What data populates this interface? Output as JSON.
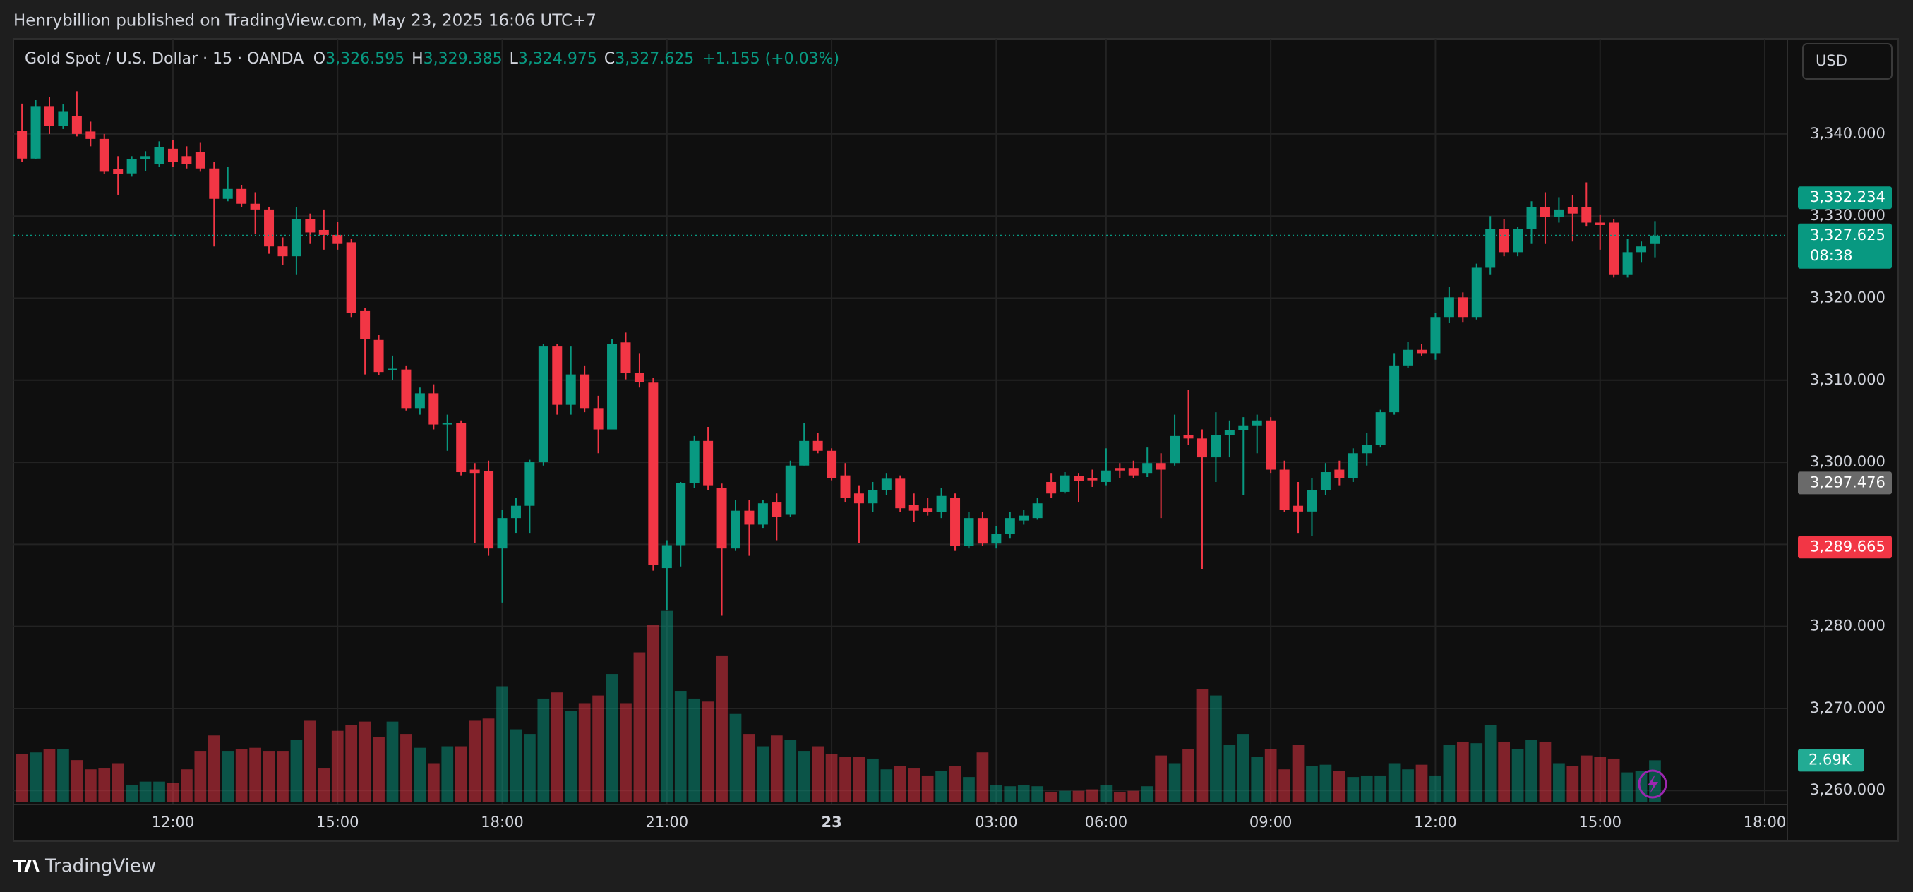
{
  "chart_data": {
    "type": "candlestick",
    "header": "Henrybillion published on TradingView.com, May 23, 2025 16:06 UTC+7",
    "title": "Gold Spot / U.S. Dollar · 15 · OANDA",
    "ohlc_legend": [
      {
        "key": "O",
        "label": "3,326.595"
      },
      {
        "key": "H",
        "label": "3,329.385"
      },
      {
        "key": "L",
        "label": "3,324.975"
      },
      {
        "key": "C",
        "label": "3,327.625"
      }
    ],
    "change": "+1.155 (+0.03%)",
    "currency": "USD",
    "brand": "TradingView",
    "up_color": "#089981",
    "down_color": "#f23645",
    "grid": true,
    "ylim": [
      3258.3,
      3351.6
    ],
    "yticks": [
      {
        "value": 3260,
        "label": "3,260.000"
      },
      {
        "value": 3270,
        "label": "3,270.000"
      },
      {
        "value": 3280,
        "label": "3,280.000"
      },
      {
        "value": 3290,
        "label": "3,290.000"
      },
      {
        "value": 3300,
        "label": "3,300.000"
      },
      {
        "value": 3310,
        "label": "3,310.000"
      },
      {
        "value": 3320,
        "label": "3,320.000"
      },
      {
        "value": 3330,
        "label": "3,330.000"
      },
      {
        "value": 3340,
        "label": "3,340.000"
      }
    ],
    "categories": [
      null,
      null,
      null,
      null,
      null,
      null,
      null,
      null,
      null,
      null,
      null,
      "12:00",
      null,
      null,
      null,
      null,
      null,
      null,
      null,
      null,
      null,
      null,
      null,
      "15:00",
      null,
      null,
      null,
      null,
      null,
      null,
      null,
      null,
      null,
      null,
      null,
      "18:00",
      null,
      null,
      null,
      null,
      null,
      null,
      null,
      null,
      null,
      null,
      null,
      "21:00",
      null,
      null,
      null,
      null,
      null,
      null,
      null,
      null,
      null,
      null,
      null,
      "23",
      null,
      null,
      null,
      null,
      null,
      null,
      null,
      null,
      null,
      null,
      null,
      "03:00",
      null,
      null,
      null,
      null,
      null,
      null,
      null,
      "06:00",
      null,
      null,
      null,
      null,
      null,
      null,
      null,
      null,
      null,
      null,
      null,
      "09:00",
      null,
      null,
      null,
      null,
      null,
      null,
      null,
      null,
      null,
      null,
      null,
      "12:00",
      null,
      null,
      null,
      null,
      null,
      null,
      null,
      null,
      null,
      null,
      null,
      "15:00",
      null,
      null,
      null,
      null,
      null,
      null,
      null,
      null,
      null,
      null,
      null,
      "18:00"
    ],
    "open": [
      3340.4,
      3337.0,
      3343.4,
      3341.0,
      3342.2,
      3340.3,
      3339.4,
      3335.7,
      3335.2,
      3336.9,
      3336.3,
      3338.2,
      3337.3,
      3337.8,
      3335.8,
      3332.1,
      3333.3,
      3331.5,
      3330.8,
      3326.3,
      3325.1,
      3329.6,
      3328.3,
      3327.7,
      3326.8,
      3318.5,
      3314.9,
      3311.2,
      3311.3,
      3306.6,
      3308.4,
      3304.6,
      3304.8,
      3299.1,
      3298.9,
      3289.5,
      3293.2,
      3294.7,
      3300.0,
      3314.1,
      3307.0,
      3310.7,
      3306.6,
      3304.0,
      3314.6,
      3310.9,
      3309.7,
      3287.1,
      3289.9,
      3297.5,
      3302.6,
      3296.9,
      3289.5,
      3294.1,
      3292.4,
      3295.1,
      3293.6,
      3299.6,
      3302.6,
      3301.4,
      3298.4,
      3296.2,
      3295.0,
      3296.6,
      3298.0,
      3294.8,
      3294.4,
      3293.9,
      3295.7,
      3289.8,
      3293.2,
      3290.1,
      3291.3,
      3292.9,
      3293.2,
      3297.6,
      3296.4,
      3298.3,
      3298.1,
      3297.6,
      3299.3,
      3299.3,
      3298.7,
      3299.9,
      3299.9,
      3303.3,
      3302.9,
      3300.6,
      3303.3,
      3303.9,
      3304.5,
      3305.1,
      3299.1,
      3294.7,
      3294.0,
      3296.6,
      3299.1,
      3298.1,
      3301.1,
      3302.1,
      3306.1,
      3311.8,
      3313.7,
      3313.3,
      3317.7,
      3320.1,
      3317.7,
      3323.7,
      3328.4,
      3325.6,
      3328.4,
      3331.1,
      3329.9,
      3331.1,
      3331.1,
      3329.2,
      3329.2,
      3322.9,
      3325.6,
      3326.595,
      null,
      null,
      null,
      null,
      null,
      null,
      null,
      null
    ],
    "high": [
      3343.7,
      3344.2,
      3344.5,
      3343.6,
      3345.2,
      3341.5,
      3340.0,
      3337.3,
      3337.3,
      3337.9,
      3339.1,
      3339.3,
      3338.5,
      3339.0,
      3336.6,
      3336.0,
      3333.8,
      3332.9,
      3331.1,
      3327.4,
      3331.1,
      3330.3,
      3330.8,
      3329.3,
      3327.2,
      3318.8,
      3315.5,
      3313.0,
      3311.8,
      3309.1,
      3309.5,
      3305.8,
      3305.1,
      3299.9,
      3300.2,
      3294.2,
      3295.7,
      3300.3,
      3314.4,
      3314.4,
      3314.1,
      3311.8,
      3308.1,
      3315.0,
      3315.8,
      3313.3,
      3310.3,
      3290.5,
      3297.6,
      3303.2,
      3304.3,
      3297.4,
      3295.4,
      3295.4,
      3295.4,
      3296.2,
      3300.2,
      3304.8,
      3303.6,
      3301.7,
      3299.9,
      3297.2,
      3297.6,
      3298.7,
      3298.4,
      3296.2,
      3295.7,
      3296.9,
      3296.2,
      3293.9,
      3293.9,
      3292.2,
      3293.9,
      3294.2,
      3295.7,
      3298.7,
      3298.8,
      3298.7,
      3299.1,
      3301.7,
      3299.9,
      3300.2,
      3301.8,
      3301.1,
      3305.8,
      3308.8,
      3304.0,
      3306.1,
      3305.1,
      3305.5,
      3305.8,
      3305.5,
      3300.2,
      3297.6,
      3298.1,
      3299.9,
      3300.2,
      3301.7,
      3303.6,
      3306.4,
      3313.3,
      3314.7,
      3314.4,
      3318.2,
      3321.4,
      3320.7,
      3324.2,
      3330.0,
      3329.6,
      3328.7,
      3331.8,
      3332.9,
      3332.3,
      3332.6,
      3334.1,
      3330.2,
      3329.6,
      3327.2,
      3326.9,
      3329.385,
      null,
      null,
      null,
      null,
      null,
      null,
      null,
      null
    ],
    "low": [
      3336.6,
      3336.9,
      3340.0,
      3340.6,
      3339.7,
      3338.5,
      3335.1,
      3332.6,
      3334.8,
      3335.5,
      3336.0,
      3336.0,
      3335.8,
      3335.4,
      3326.3,
      3331.8,
      3331.1,
      3327.8,
      3325.4,
      3324.0,
      3322.9,
      3326.6,
      3325.9,
      3325.9,
      3317.7,
      3310.7,
      3310.6,
      3310.0,
      3306.3,
      3305.8,
      3304.0,
      3301.4,
      3298.4,
      3290.2,
      3288.6,
      3282.9,
      3291.4,
      3291.4,
      3299.6,
      3305.8,
      3305.8,
      3306.1,
      3301.1,
      3304.0,
      3310.1,
      3309.1,
      3286.8,
      3282.0,
      3287.3,
      3296.9,
      3296.6,
      3281.3,
      3289.2,
      3288.6,
      3292.0,
      3290.5,
      3293.3,
      3299.6,
      3301.1,
      3297.8,
      3295.1,
      3290.2,
      3293.9,
      3296.0,
      3293.9,
      3292.7,
      3293.5,
      3293.2,
      3289.2,
      3289.5,
      3289.8,
      3289.5,
      3290.7,
      3292.4,
      3293.0,
      3295.7,
      3296.2,
      3295.1,
      3297.0,
      3297.2,
      3298.1,
      3298.1,
      3298.2,
      3293.2,
      3299.6,
      3302.1,
      3287.0,
      3297.6,
      3300.6,
      3296.0,
      3301.1,
      3298.7,
      3293.9,
      3291.4,
      3291.0,
      3296.0,
      3297.2,
      3297.6,
      3299.6,
      3301.8,
      3305.8,
      3311.5,
      3313.0,
      3312.5,
      3317.0,
      3317.1,
      3317.4,
      3322.9,
      3325.1,
      3325.1,
      3326.6,
      3326.6,
      3329.2,
      3326.9,
      3328.8,
      3325.9,
      3322.5,
      3322.5,
      3324.4,
      3324.975,
      null,
      null,
      null,
      null,
      null,
      null,
      null,
      null
    ],
    "close": [
      3337.0,
      3343.4,
      3341.0,
      3342.7,
      3340.0,
      3339.4,
      3335.4,
      3335.1,
      3336.9,
      3337.3,
      3338.4,
      3336.6,
      3336.3,
      3335.8,
      3332.1,
      3333.3,
      3331.5,
      3330.8,
      3326.3,
      3325.1,
      3329.6,
      3328.0,
      3327.7,
      3326.6,
      3318.2,
      3315.0,
      3311.0,
      3311.4,
      3306.6,
      3308.4,
      3304.6,
      3304.8,
      3298.8,
      3298.7,
      3289.5,
      3293.2,
      3294.7,
      3300.0,
      3314.1,
      3307.0,
      3310.7,
      3306.6,
      3304.0,
      3314.4,
      3310.9,
      3309.8,
      3287.5,
      3289.9,
      3297.5,
      3302.6,
      3297.2,
      3289.5,
      3294.1,
      3292.4,
      3295.0,
      3293.3,
      3299.6,
      3302.6,
      3301.4,
      3298.1,
      3295.7,
      3295.0,
      3296.6,
      3298.0,
      3294.4,
      3294.1,
      3293.9,
      3295.9,
      3289.8,
      3293.2,
      3290.1,
      3291.3,
      3293.2,
      3293.5,
      3295.0,
      3296.2,
      3298.4,
      3297.7,
      3297.8,
      3299.0,
      3299.0,
      3298.4,
      3299.9,
      3299.1,
      3303.2,
      3302.9,
      3300.6,
      3303.3,
      3303.9,
      3304.5,
      3305.1,
      3299.1,
      3294.2,
      3294.0,
      3296.6,
      3298.8,
      3298.1,
      3301.1,
      3302.1,
      3306.1,
      3311.8,
      3313.7,
      3313.3,
      3317.7,
      3320.1,
      3317.7,
      3323.7,
      3328.4,
      3325.6,
      3328.4,
      3331.1,
      3329.9,
      3330.8,
      3330.3,
      3329.2,
      3328.9,
      3322.9,
      3325.6,
      3326.3,
      3327.625,
      null,
      null,
      null,
      null,
      null,
      null,
      null,
      null
    ],
    "volume": [
      3.1,
      3.2,
      3.4,
      3.4,
      2.7,
      2.1,
      2.2,
      2.5,
      1.1,
      1.3,
      1.3,
      1.2,
      2.1,
      3.3,
      4.3,
      3.3,
      3.4,
      3.5,
      3.3,
      3.3,
      4.0,
      5.3,
      2.2,
      4.6,
      5.0,
      5.2,
      4.2,
      5.2,
      4.4,
      3.5,
      2.5,
      3.6,
      3.6,
      5.3,
      5.4,
      7.5,
      4.7,
      4.4,
      6.7,
      7.1,
      5.9,
      6.4,
      6.9,
      8.3,
      6.4,
      9.7,
      11.5,
      12.4,
      7.2,
      6.7,
      6.5,
      9.5,
      5.7,
      4.4,
      3.6,
      4.3,
      4.0,
      3.3,
      3.6,
      3.1,
      2.9,
      2.9,
      2.8,
      2.1,
      2.3,
      2.2,
      1.7,
      2.0,
      2.3,
      1.6,
      3.2,
      1.1,
      1.0,
      1.1,
      1.0,
      0.6,
      0.7,
      0.7,
      0.8,
      1.1,
      0.6,
      0.7,
      1.0,
      3.0,
      2.5,
      3.4,
      7.3,
      6.9,
      3.7,
      4.4,
      2.9,
      3.4,
      2.1,
      3.7,
      2.3,
      2.4,
      2.0,
      1.6,
      1.7,
      1.7,
      2.5,
      2.1,
      2.4,
      1.7,
      3.7,
      3.9,
      3.8,
      5.0,
      3.9,
      3.4,
      4.0,
      3.9,
      2.5,
      2.3,
      3.0,
      2.9,
      2.8,
      1.9,
      2.0,
      2.69,
      null,
      null,
      null,
      null,
      null,
      null,
      null,
      null
    ],
    "last_price": {
      "value": 3327.625,
      "label": "3,327.625",
      "countdown": "08:38",
      "color": "#089981"
    },
    "price_labels": [
      {
        "value": 3332.234,
        "label": "3,332.234",
        "color": "#089981"
      },
      {
        "value": 3297.476,
        "label": "3,297.476",
        "color": "#6a6a6a"
      },
      {
        "value": 3289.665,
        "label": "3,289.665",
        "color": "#f23645"
      }
    ],
    "volume_label": {
      "value": 2.69,
      "label": "2.69K",
      "color": "#22ab94"
    }
  }
}
